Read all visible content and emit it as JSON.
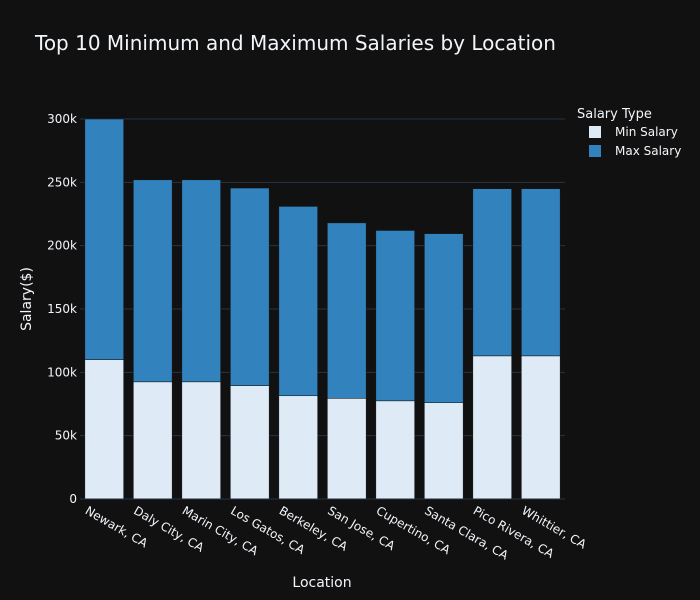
{
  "chart_data": {
    "type": "bar",
    "barmode": "stack",
    "title": "Top 10 Minimum and Maximum Salaries by Location",
    "xlabel": "Location",
    "ylabel": "Salary($)",
    "ylim": [
      0,
      300000
    ],
    "yticks": [
      0,
      50000,
      100000,
      150000,
      200000,
      250000,
      300000
    ],
    "ytick_labels": [
      "0",
      "50k",
      "100k",
      "150k",
      "200k",
      "250k",
      "300k"
    ],
    "grid": true,
    "legend": {
      "title": "Salary Type",
      "placement": "top-right"
    },
    "categories": [
      "Newark, CA",
      "Daly City, CA",
      "Marin City, CA",
      "Los Gatos, CA",
      "Berkeley, CA",
      "San Jose, CA",
      "Cupertino, CA",
      "Santa Clara, CA",
      "Pico Rivera, CA",
      "Whittier, CA"
    ],
    "series": [
      {
        "name": "Min Salary",
        "color": "#deebf7",
        "values": [
          110000,
          92500,
          92500,
          89500,
          81500,
          79500,
          77500,
          76000,
          113000,
          113000
        ]
      },
      {
        "name": "Max Salary",
        "color": "#3182bd",
        "values": [
          190000,
          159500,
          159500,
          156000,
          149500,
          138500,
          134500,
          133500,
          132000,
          132000
        ]
      }
    ]
  },
  "colors": {
    "background": "#111111",
    "grid": "#283442",
    "text": "#f2f5fa"
  }
}
